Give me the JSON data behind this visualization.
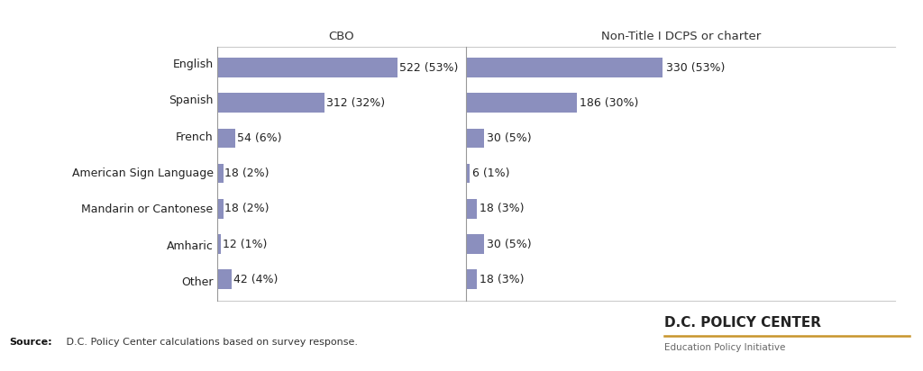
{
  "categories": [
    "English",
    "Spanish",
    "French",
    "American Sign Language",
    "Mandarin or Cantonese",
    "Amharic",
    "Other"
  ],
  "cbo_values": [
    522,
    312,
    54,
    18,
    18,
    12,
    42
  ],
  "cbo_labels": [
    "522 (53%)",
    "312 (32%)",
    "54 (6%)",
    "18 (2%)",
    "18 (2%)",
    "12 (1%)",
    "42 (4%)"
  ],
  "nontitle_values": [
    330,
    186,
    30,
    6,
    18,
    30,
    18
  ],
  "nontitle_labels": [
    "330 (53%)",
    "186 (30%)",
    "30 (5%)",
    "6 (1%)",
    "18 (3%)",
    "30 (5%)",
    "18 (3%)"
  ],
  "bar_color": "#8b8fbe",
  "cbo_header": "CBO",
  "nontitle_header": "Non-Title I DCPS or charter",
  "source_bold": "Source:",
  "source_rest": " D.C. Policy Center calculations based on survey response.",
  "logo_line1": "D.C. POLICY CENTER",
  "logo_line2": "Education Policy Initiative",
  "logo_color": "#222222",
  "logo_underline_color": "#c8952c",
  "background_color": "#ffffff",
  "max_value": 522,
  "bar_height": 0.55,
  "label_fontsize": 9.0,
  "header_fontsize": 9.5,
  "tick_fontsize": 9.0,
  "border_color": "#cccccc",
  "divider_color": "#999999"
}
